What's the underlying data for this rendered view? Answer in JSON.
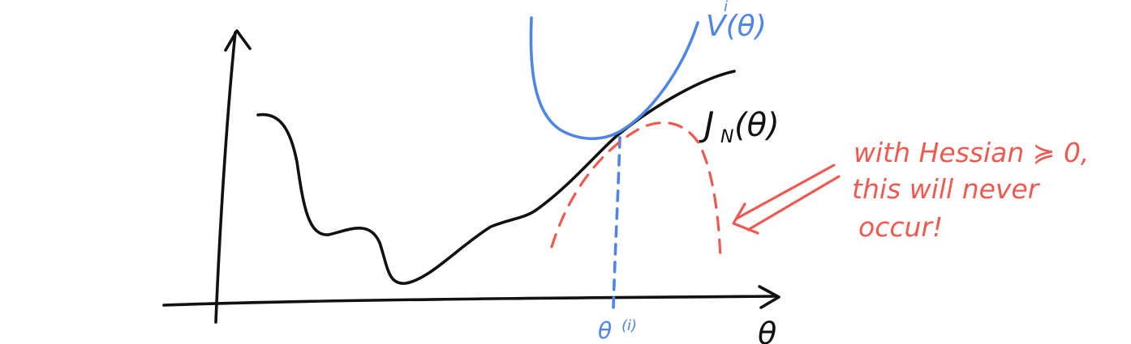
{
  "labels": {
    "axis_x": "θ",
    "surrogate": "V(θ)",
    "surrogate_sup": "i",
    "objective": "J",
    "objective_sub": "N",
    "objective_arg": "(θ)",
    "iterate": "θ",
    "iterate_sup": "(i)"
  },
  "annotation": {
    "line1": "with Hessian ≽ 0,",
    "line2": "this will never",
    "line3": "occur!"
  },
  "colors": {
    "ink": "#111111",
    "surrogate": "#4f86e6",
    "annotation": "#ee5a52"
  }
}
